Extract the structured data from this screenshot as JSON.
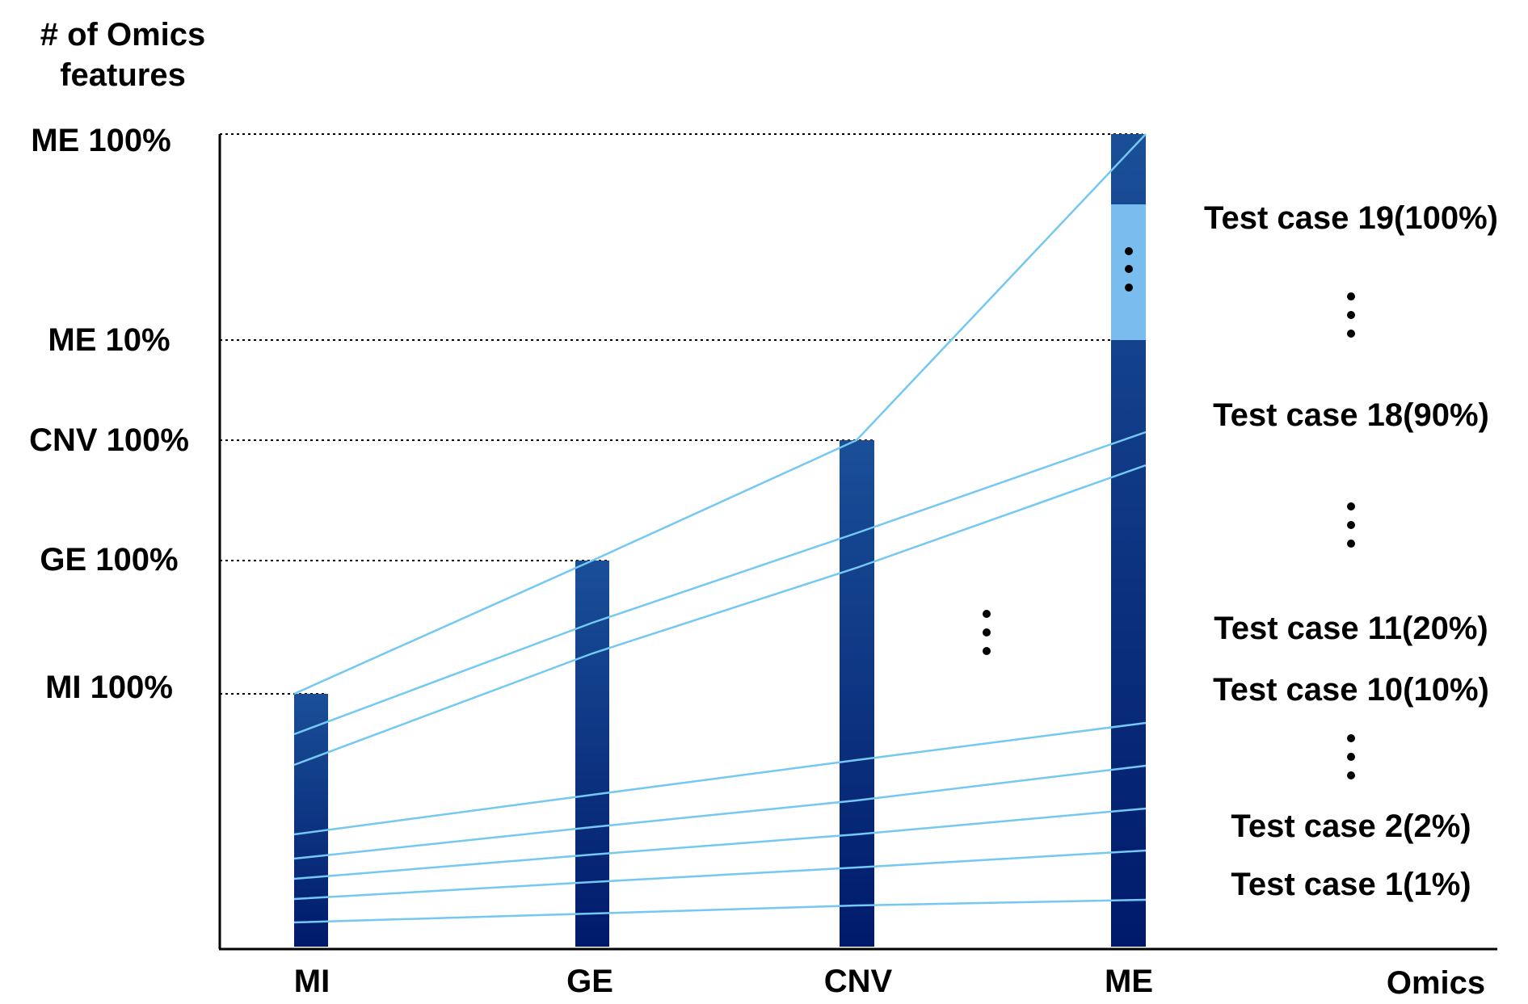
{
  "ylabel_lines": [
    "# of Omics",
    "features"
  ],
  "xlabel": "Omics",
  "columns": [
    {
      "key": "mi",
      "label": "MI"
    },
    {
      "key": "ge",
      "label": "GE"
    },
    {
      "key": "cnv",
      "label": "CNV"
    },
    {
      "key": "me",
      "label": "ME"
    }
  ],
  "levels": [
    {
      "key": "mi100",
      "label": "MI 100%"
    },
    {
      "key": "ge100",
      "label": "GE 100%"
    },
    {
      "key": "cnv100",
      "label": "CNV 100%"
    },
    {
      "key": "me10",
      "label": "ME 10%"
    },
    {
      "key": "me100",
      "label": "ME 100%"
    }
  ],
  "test_cases": [
    {
      "label": "Test case 19(100%)"
    },
    {
      "label": "Test case 18(90%)"
    },
    {
      "label": "Test case 11(20%)"
    },
    {
      "label": "Test case 10(10%)"
    },
    {
      "label": "Test case 2(2%)"
    },
    {
      "label": "Test case 1(1%)"
    }
  ],
  "colors": {
    "bar_top": "#1a4f98",
    "bar_bottom": "#001a6b",
    "highlight": "#78bdee",
    "line": "#74c8f2",
    "axis": "#000000"
  }
}
